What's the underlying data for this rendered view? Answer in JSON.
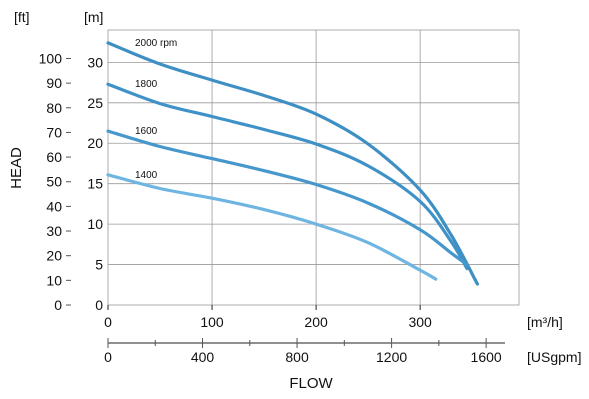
{
  "chart_data": {
    "type": "line",
    "ylabel": "HEAD",
    "xlabel": "FLOW",
    "y_units": {
      "primary": "[m]",
      "secondary": "[ft]"
    },
    "x_units": {
      "primary": "[m³/h]",
      "secondary": "[USgpm]"
    },
    "y_ticks_m": [
      "0",
      "5",
      "10",
      "15",
      "20",
      "25",
      "30"
    ],
    "y_ticks_ft": [
      "0",
      "10",
      "20",
      "30",
      "40",
      "50",
      "60",
      "70",
      "80",
      "90",
      "100"
    ],
    "x_ticks_m3h": [
      "0",
      "100",
      "200",
      "300"
    ],
    "x_ticks_usgpm": [
      "0",
      "400",
      "800",
      "1200",
      "1600"
    ],
    "xlim_m3h": [
      0,
      395
    ],
    "ylim_m": [
      0,
      34
    ],
    "grid": true,
    "series": [
      {
        "name": "2000 rpm",
        "color": "#3d8fc4",
        "x": [
          0,
          50,
          100,
          150,
          200,
          250,
          300,
          330,
          355
        ],
        "y": [
          32.4,
          29.8,
          27.8,
          25.9,
          23.6,
          19.9,
          14.2,
          8.6,
          2.6
        ]
      },
      {
        "name": "1800",
        "color": "#3f92c8",
        "x": [
          0,
          50,
          100,
          150,
          200,
          250,
          300,
          330,
          345
        ],
        "y": [
          27.3,
          24.9,
          23.3,
          21.7,
          19.9,
          17.2,
          12.8,
          7.8,
          4.5
        ]
      },
      {
        "name": "1600",
        "color": "#4698cc",
        "x": [
          0,
          50,
          100,
          150,
          200,
          250,
          300,
          330,
          345
        ],
        "y": [
          21.5,
          19.6,
          18.1,
          16.6,
          14.9,
          12.6,
          9.3,
          6.4,
          5.0
        ]
      },
      {
        "name": "1400",
        "color": "#6fb5e2",
        "x": [
          0,
          50,
          100,
          150,
          200,
          250,
          300,
          315
        ],
        "y": [
          16.1,
          14.4,
          13.2,
          11.8,
          10.0,
          7.7,
          4.3,
          3.2
        ]
      }
    ]
  }
}
